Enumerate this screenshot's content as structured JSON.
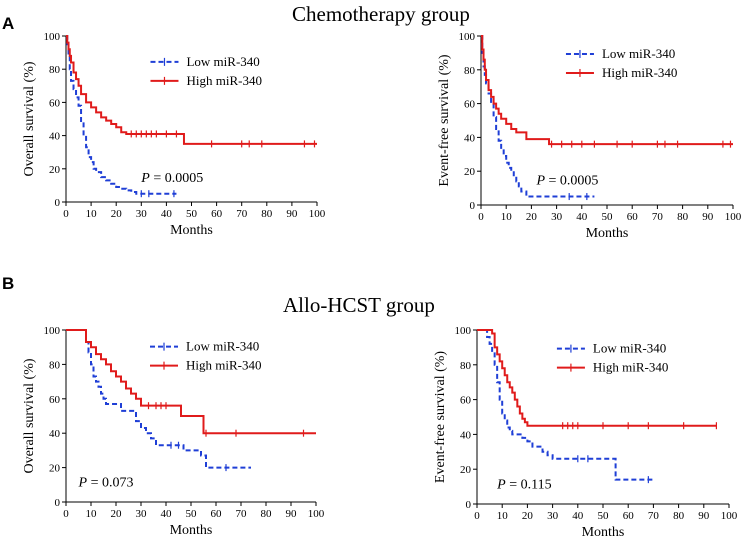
{
  "panels": [
    {
      "letter": "A",
      "title": "Chemotherapy group"
    },
    {
      "letter": "B",
      "title": "Allo-HCST group"
    }
  ],
  "colors": {
    "low": "#1f3fd6",
    "high": "#e01b1b"
  },
  "chart_data": [
    {
      "type": "line",
      "title": "Chemotherapy group",
      "xlabel": "Months",
      "ylabel": "Overall survival (%)",
      "xlim": [
        0,
        100
      ],
      "ylim": [
        0,
        100
      ],
      "xticks": [
        0,
        10,
        20,
        30,
        40,
        50,
        60,
        70,
        80,
        90,
        100
      ],
      "yticks": [
        0,
        20,
        40,
        60,
        80,
        100
      ],
      "p_label": "P",
      "p_value": "= 0.0005",
      "p_pos": [
        30,
        12
      ],
      "legend_pos": [
        48,
        82
      ],
      "series": [
        {
          "name": "Low miR-340",
          "style": "dashed",
          "x": [
            0,
            0.5,
            1,
            1.5,
            2,
            3,
            4,
            5,
            6,
            7,
            8,
            9,
            10,
            11,
            12,
            14,
            16,
            18,
            20,
            22,
            24,
            26,
            28,
            44
          ],
          "y": [
            100,
            95,
            88,
            80,
            73,
            68,
            63,
            58,
            48,
            40,
            33,
            27,
            24,
            20,
            18,
            15,
            13,
            11,
            9,
            8,
            7,
            6,
            5,
            5
          ],
          "censored": [
            [
              30,
              5
            ],
            [
              33,
              5
            ],
            [
              43,
              5
            ]
          ]
        },
        {
          "name": "High miR-340",
          "style": "solid",
          "x": [
            0,
            0.5,
            1,
            1.5,
            2,
            3,
            4,
            5,
            6,
            8,
            10,
            12,
            14,
            16,
            18,
            20,
            22,
            24,
            46,
            47,
            100
          ],
          "y": [
            100,
            96,
            92,
            88,
            84,
            78,
            74,
            70,
            65,
            60,
            57,
            54,
            51,
            49,
            47,
            45,
            42,
            41,
            41,
            35,
            35
          ],
          "censored": [
            [
              26,
              41
            ],
            [
              28,
              41
            ],
            [
              30,
              41
            ],
            [
              32,
              41
            ],
            [
              34,
              41
            ],
            [
              36,
              41
            ],
            [
              40,
              41
            ],
            [
              44,
              41
            ],
            [
              58,
              35
            ],
            [
              70,
              35
            ],
            [
              73,
              35
            ],
            [
              78,
              35
            ],
            [
              95,
              35
            ],
            [
              99,
              35
            ]
          ]
        }
      ]
    },
    {
      "type": "line",
      "title": "",
      "xlabel": "Months",
      "ylabel": "Event-free survival (%)",
      "xlim": [
        0,
        100
      ],
      "ylim": [
        0,
        100
      ],
      "xticks": [
        0,
        10,
        20,
        30,
        40,
        50,
        60,
        70,
        80,
        90,
        100
      ],
      "yticks": [
        0,
        20,
        40,
        60,
        80,
        100
      ],
      "p_label": "P",
      "p_value": "= 0.0005",
      "p_pos": [
        22,
        12
      ],
      "legend_pos": [
        48,
        87
      ],
      "series": [
        {
          "name": "Low miR-340",
          "style": "dashed",
          "x": [
            0,
            0.5,
            1,
            1.5,
            2,
            3,
            4,
            5,
            6,
            7,
            8,
            9,
            10,
            11,
            12,
            13,
            14,
            15,
            16,
            18,
            45
          ],
          "y": [
            100,
            90,
            82,
            77,
            72,
            66,
            60,
            52,
            45,
            38,
            33,
            29,
            25,
            22,
            20,
            17,
            14,
            11,
            8,
            5,
            5
          ],
          "censored": [
            [
              35,
              5
            ],
            [
              42,
              5
            ]
          ]
        },
        {
          "name": "High miR-340",
          "style": "solid",
          "x": [
            0,
            0.5,
            1,
            1.5,
            2,
            3,
            4,
            5,
            6,
            7,
            8,
            10,
            12,
            14,
            18,
            26,
            27,
            100
          ],
          "y": [
            100,
            92,
            86,
            80,
            74,
            68,
            64,
            60,
            57,
            54,
            51,
            48,
            45,
            43,
            39,
            39,
            36,
            36
          ],
          "censored": [
            [
              28,
              36
            ],
            [
              32,
              36
            ],
            [
              36,
              36
            ],
            [
              40,
              36
            ],
            [
              45,
              36
            ],
            [
              54,
              36
            ],
            [
              60,
              36
            ],
            [
              70,
              36
            ],
            [
              73,
              36
            ],
            [
              78,
              36
            ],
            [
              96,
              36
            ],
            [
              99,
              36
            ]
          ]
        }
      ]
    },
    {
      "type": "line",
      "title": "Allo-HCST group",
      "xlabel": "Months",
      "ylabel": "Overall survival (%)",
      "xlim": [
        0,
        100
      ],
      "ylim": [
        0,
        100
      ],
      "xticks": [
        0,
        10,
        20,
        30,
        40,
        50,
        60,
        70,
        80,
        90,
        100
      ],
      "yticks": [
        0,
        20,
        40,
        60,
        80,
        100
      ],
      "p_label": "P",
      "p_value": "= 0.073",
      "p_pos": [
        5,
        9
      ],
      "legend_pos": [
        48,
        88
      ],
      "series": [
        {
          "name": "Low miR-340",
          "style": "dashed",
          "x": [
            0,
            7,
            8,
            9,
            10,
            11,
            12,
            13,
            14,
            15,
            16,
            18,
            20,
            22,
            28,
            30,
            32,
            34,
            36,
            44,
            47,
            54,
            56,
            74
          ],
          "y": [
            100,
            100,
            93,
            87,
            80,
            73,
            70,
            67,
            63,
            60,
            57,
            57,
            57,
            53,
            47,
            43,
            40,
            37,
            33,
            33,
            30,
            27,
            20,
            20
          ],
          "censored": [
            [
              42,
              33
            ],
            [
              45,
              33
            ],
            [
              64,
              20
            ]
          ]
        },
        {
          "name": "High miR-340",
          "style": "solid",
          "x": [
            0,
            6,
            8,
            10,
            12,
            14,
            16,
            18,
            20,
            22,
            24,
            26,
            28,
            30,
            45,
            46,
            53,
            55,
            100
          ],
          "y": [
            100,
            100,
            93,
            90,
            86,
            83,
            80,
            76,
            73,
            70,
            66,
            63,
            60,
            56,
            56,
            50,
            50,
            40,
            40
          ],
          "censored": [
            [
              33,
              56
            ],
            [
              36,
              56
            ],
            [
              38,
              56
            ],
            [
              40,
              56
            ],
            [
              56,
              40
            ],
            [
              68,
              40
            ],
            [
              95,
              40
            ]
          ]
        }
      ]
    },
    {
      "type": "line",
      "title": "",
      "xlabel": "Months",
      "ylabel": "Event-free survival (%)",
      "xlim": [
        0,
        100
      ],
      "ylim": [
        0,
        100
      ],
      "xticks": [
        0,
        10,
        20,
        30,
        40,
        50,
        60,
        70,
        80,
        90,
        100
      ],
      "yticks": [
        0,
        20,
        40,
        60,
        80,
        100
      ],
      "p_label": "P",
      "p_value": "= 0.115",
      "p_pos": [
        8,
        9
      ],
      "legend_pos": [
        46,
        87
      ],
      "series": [
        {
          "name": "Low miR-340",
          "style": "dashed",
          "x": [
            0,
            4,
            5,
            6,
            7,
            8,
            9,
            10,
            11,
            12,
            13,
            14,
            18,
            20,
            22,
            26,
            28,
            30,
            34,
            48,
            55,
            56,
            70
          ],
          "y": [
            100,
            96,
            92,
            88,
            80,
            70,
            60,
            52,
            48,
            44,
            42,
            40,
            38,
            36,
            33,
            30,
            28,
            26,
            26,
            26,
            14,
            14,
            14
          ],
          "censored": [
            [
              40,
              26
            ],
            [
              44,
              26
            ],
            [
              68,
              14
            ]
          ]
        },
        {
          "name": "High miR-340",
          "style": "solid",
          "x": [
            0,
            6,
            7,
            8,
            9,
            10,
            11,
            12,
            13,
            14,
            15,
            16,
            17,
            18,
            19,
            20,
            95
          ],
          "y": [
            100,
            98,
            90,
            86,
            82,
            78,
            74,
            70,
            67,
            64,
            60,
            56,
            52,
            49,
            47,
            45,
            45
          ],
          "censored": [
            [
              34,
              45
            ],
            [
              36,
              45
            ],
            [
              38,
              45
            ],
            [
              40,
              45
            ],
            [
              50,
              45
            ],
            [
              60,
              45
            ],
            [
              68,
              45
            ],
            [
              82,
              45
            ],
            [
              95,
              45
            ]
          ]
        }
      ]
    }
  ]
}
